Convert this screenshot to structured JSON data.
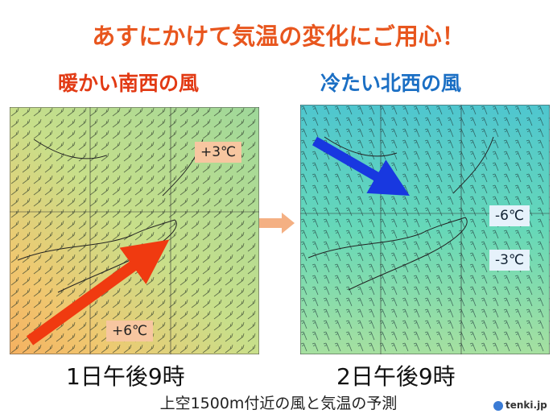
{
  "title": "あすにかけて気温の変化にご用心！",
  "left": {
    "heading": "暖かい南西の風",
    "labels": [
      "+3℃",
      "+6℃"
    ],
    "caption": "1日午後9時"
  },
  "right": {
    "heading": "冷たい北西の風",
    "labels": [
      "-6℃",
      "-3℃"
    ],
    "caption": "2日午後9時"
  },
  "footer": "上空1500m付近の風と気温の予測",
  "logo": "tenki.jp"
}
